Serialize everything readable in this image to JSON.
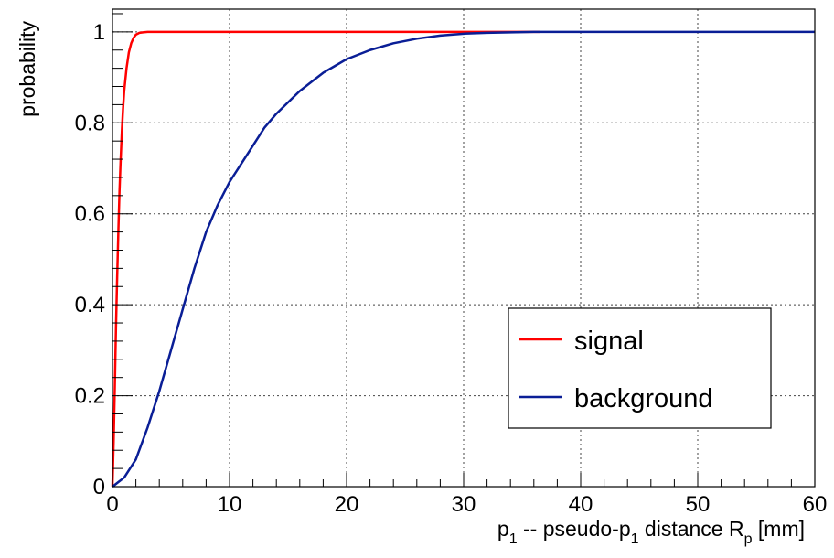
{
  "chart_data": {
    "type": "line",
    "title": "",
    "xlabel": {
      "p": "p",
      "sub1": "1",
      "mid": " -- pseudo-p",
      "sub2": "1",
      "dist": " distance R",
      "sub3": "p",
      "unit": " [mm]"
    },
    "ylabel": "probability",
    "xlim": [
      0,
      60
    ],
    "ylim": [
      0,
      1.05
    ],
    "x_ticks": [
      0,
      10,
      20,
      30,
      40,
      50,
      60
    ],
    "x_tick_labels": [
      "0",
      "10",
      "20",
      "30",
      "40",
      "50",
      "60"
    ],
    "y_ticks": [
      0,
      0.2,
      0.4,
      0.6,
      0.8,
      1
    ],
    "y_tick_labels": [
      "0",
      "0.2",
      "0.4",
      "0.6",
      "0.8",
      "1"
    ],
    "grid": true,
    "legend_position": "bottom-right",
    "series": [
      {
        "name": "signal",
        "color": "#ff0000",
        "x": [
          0,
          0.1,
          0.2,
          0.3,
          0.4,
          0.5,
          0.6,
          0.7,
          0.8,
          0.9,
          1.0,
          1.2,
          1.4,
          1.6,
          1.8,
          2.0,
          2.3,
          2.6,
          3.0,
          3.5,
          5,
          10,
          20,
          30,
          36.5
        ],
        "y": [
          0,
          0.1,
          0.22,
          0.35,
          0.46,
          0.56,
          0.65,
          0.72,
          0.78,
          0.83,
          0.87,
          0.92,
          0.955,
          0.975,
          0.987,
          0.994,
          0.998,
          0.999,
          1.0,
          1.0,
          1.0,
          1.0,
          1.0,
          1.0,
          1.0
        ]
      },
      {
        "name": "background",
        "color": "#0a1e96",
        "x": [
          0,
          1,
          2,
          3,
          4,
          5,
          6,
          7,
          8,
          9,
          10,
          11,
          12,
          13,
          14,
          15,
          16,
          17,
          18,
          19,
          20,
          22,
          24,
          26,
          28,
          30,
          32,
          34,
          36,
          38,
          40,
          45,
          50,
          55,
          60
        ],
        "y": [
          0,
          0.02,
          0.06,
          0.13,
          0.21,
          0.3,
          0.39,
          0.48,
          0.56,
          0.62,
          0.67,
          0.71,
          0.75,
          0.79,
          0.82,
          0.845,
          0.87,
          0.89,
          0.91,
          0.925,
          0.94,
          0.96,
          0.975,
          0.985,
          0.992,
          0.996,
          0.998,
          0.999,
          1.0,
          1.0,
          1.0,
          1.0,
          1.0,
          1.0,
          1.0
        ]
      }
    ]
  }
}
